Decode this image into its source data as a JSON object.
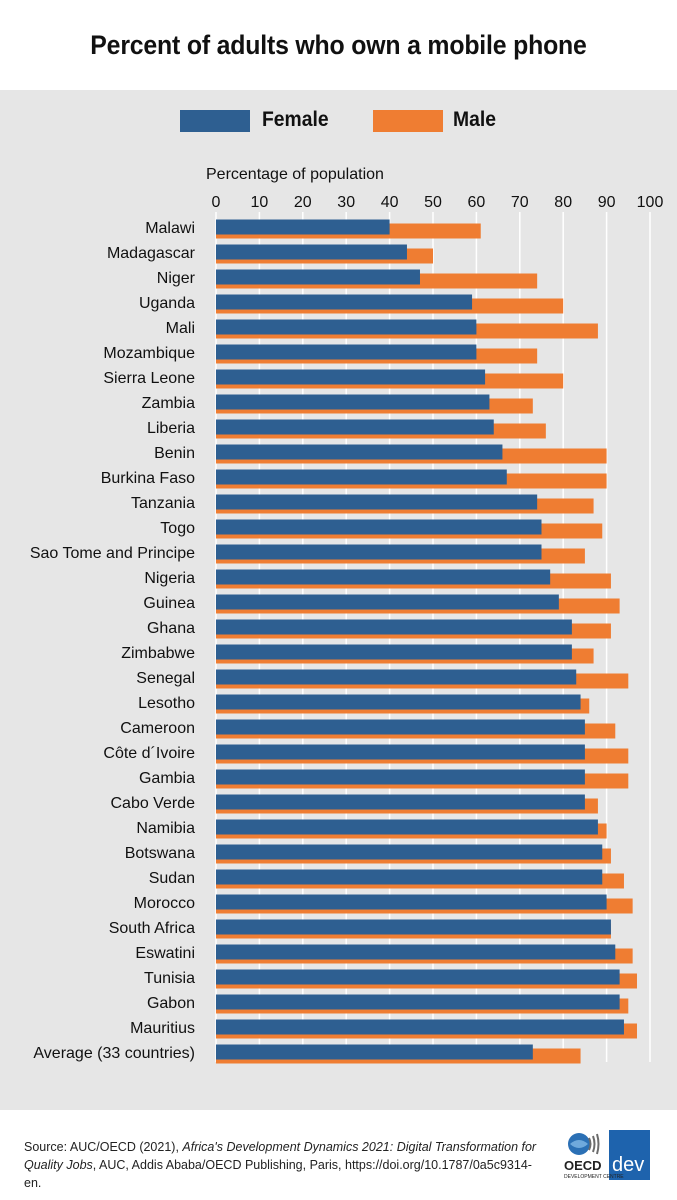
{
  "title": "Percent of adults who own a mobile phone",
  "legend": {
    "female_label": "Female",
    "male_label": "Male"
  },
  "source": {
    "prefix": "Source: AUC/OECD (2021), ",
    "italic_title": "Africa's Development Dynamics 2021: Digital Transformation for Quality Jobs",
    "suffix": ", AUC, Addis Ababa/OECD Publishing, Paris, https://doi.org/10.1787/0a5c9314-en."
  },
  "logo": {
    "text_oecd": "OECD",
    "text_dev": "dev",
    "text_centre": "DEVELOPMENT CENTRE"
  },
  "colors": {
    "female": "#2e5f91",
    "male": "#ef7d32",
    "panel": "#e6e6e6",
    "grid": "#ffffff"
  },
  "chart_data": {
    "type": "bar",
    "orientation": "horizontal",
    "title": "Percent of adults who own a mobile phone",
    "xlabel": "Percentage of population",
    "xlim": [
      0,
      100
    ],
    "xticks": [
      0,
      10,
      20,
      30,
      40,
      50,
      60,
      70,
      80,
      90,
      100
    ],
    "grid": true,
    "legend_position": "top",
    "categories": [
      "Malawi",
      "Madagascar",
      "Niger",
      "Uganda",
      "Mali",
      "Mozambique",
      "Sierra Leone",
      "Zambia",
      "Liberia",
      "Benin",
      "Burkina Faso",
      "Tanzania",
      "Togo",
      "Sao Tome and Principe",
      "Nigeria",
      "Guinea",
      "Ghana",
      "Zimbabwe",
      "Senegal",
      "Lesotho",
      "Cameroon",
      "Côte d´Ivoire",
      "Gambia",
      "Cabo Verde",
      "Namibia",
      "Botswana",
      "Sudan",
      "Morocco",
      "South Africa",
      "Eswatini",
      "Tunisia",
      "Gabon",
      "Mauritius",
      "Average (33 countries)"
    ],
    "series": [
      {
        "name": "Female",
        "values": [
          40,
          44,
          47,
          59,
          60,
          60,
          62,
          63,
          64,
          66,
          67,
          74,
          75,
          75,
          77,
          79,
          82,
          82,
          83,
          84,
          85,
          85,
          85,
          85,
          88,
          89,
          89,
          90,
          91,
          92,
          93,
          93,
          94,
          73
        ]
      },
      {
        "name": "Male",
        "values": [
          61,
          50,
          74,
          80,
          88,
          74,
          80,
          73,
          76,
          90,
          90,
          87,
          89,
          85,
          91,
          93,
          91,
          87,
          95,
          86,
          92,
          95,
          95,
          88,
          90,
          91,
          94,
          96,
          91,
          96,
          97,
          95,
          97,
          84
        ]
      }
    ]
  }
}
